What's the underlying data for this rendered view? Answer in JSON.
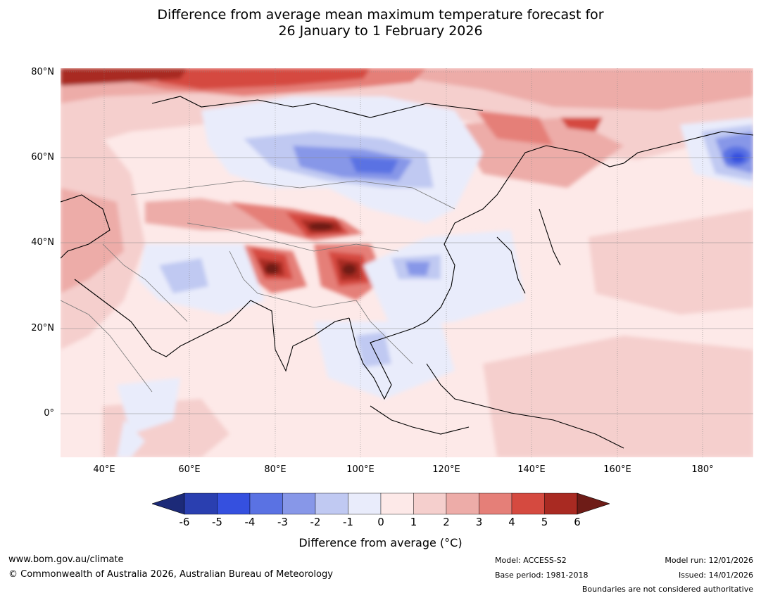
{
  "header": {
    "title_line1": "Difference from average mean maximum temperature forecast for",
    "title_line2": "26 January to 1 February 2026"
  },
  "map": {
    "lat_labels": [
      "80°N",
      "60°N",
      "40°N",
      "20°N",
      "0°"
    ],
    "lon_labels": [
      "40°E",
      "60°E",
      "80°E",
      "100°E",
      "120°E",
      "140°E",
      "160°E",
      "180°"
    ]
  },
  "legend": {
    "ticks": [
      "-6",
      "-5",
      "-4",
      "-3",
      "-2",
      "-1",
      "0",
      "1",
      "2",
      "3",
      "4",
      "5",
      "6"
    ],
    "colors": [
      "#1c2a78",
      "#2a3fb0",
      "#3550df",
      "#5a72e3",
      "#8797e8",
      "#c0c9f2",
      "#e9ecfb",
      "#fde9e8",
      "#f5cfcd",
      "#edaca8",
      "#e57f78",
      "#d54a40",
      "#a92a22",
      "#6e1c17"
    ],
    "label": "Difference from average (",
    "label_unit": "°C",
    "label_end": ")"
  },
  "footer": {
    "website": "www.bom.gov.au/climate",
    "copyright": "© Commonwealth of Australia 2026, Australian Bureau of Meteorology",
    "model": "Model: ACCESS-S2",
    "base_period": "Base period: 1981-2018",
    "model_run": "Model run: 12/01/2026",
    "issued": "Issued: 14/01/2026",
    "disclaimer": "Boundaries are not considered authoritative"
  }
}
